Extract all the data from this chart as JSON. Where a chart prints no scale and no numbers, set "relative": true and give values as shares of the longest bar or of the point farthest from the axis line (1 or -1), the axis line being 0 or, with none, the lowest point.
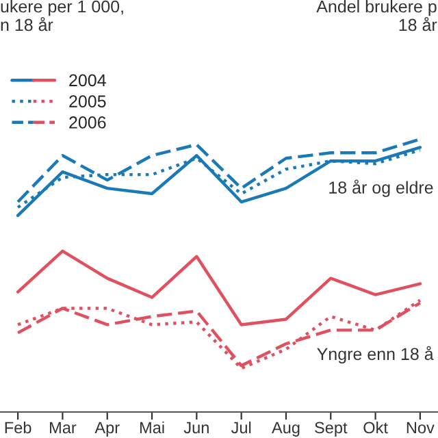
{
  "chart_data": {
    "type": "line",
    "relative": true,
    "title": "ukere per 1 000,\nn 18 år",
    "subtitle": "Andel brukere p\n18 år",
    "categories": [
      "Feb",
      "Mar",
      "Apr",
      "Mai",
      "Jun",
      "Jul",
      "Aug",
      "Sept",
      "Okt",
      "Nov"
    ],
    "series": [
      {
        "name": "2004",
        "color": "#1a7ab8",
        "line_style": "solid",
        "values": [
          0.72,
          0.88,
          0.82,
          0.8,
          0.94,
          0.77,
          0.82,
          0.92,
          0.92,
          0.97
        ]
      },
      {
        "name": "2005",
        "color": "#1a7ab8",
        "line_style": "dotted",
        "values": [
          0.75,
          0.86,
          0.87,
          0.87,
          0.93,
          0.8,
          0.89,
          0.92,
          0.91,
          0.96
        ]
      },
      {
        "name": "2006",
        "color": "#1a7ab8",
        "line_style": "dashed",
        "values": [
          0.77,
          0.94,
          0.85,
          0.94,
          0.98,
          0.82,
          0.93,
          0.95,
          0.95,
          1.0
        ]
      },
      {
        "color": "#e0505f",
        "line_style": "solid",
        "values": [
          0.44,
          0.59,
          0.49,
          0.42,
          0.57,
          0.32,
          0.34,
          0.49,
          0.43,
          0.47
        ]
      },
      {
        "color": "#e0505f",
        "line_style": "dotted",
        "values": [
          0.32,
          0.38,
          0.38,
          0.32,
          0.33,
          0.16,
          0.23,
          0.35,
          0.3,
          0.41
        ]
      },
      {
        "color": "#e0505f",
        "line_style": "dashed",
        "values": [
          0.29,
          0.38,
          0.32,
          0.35,
          0.37,
          0.17,
          0.25,
          0.3,
          0.3,
          0.4
        ]
      }
    ],
    "annotations": [
      "18 år og eldre",
      "Yngre enn 18 å"
    ],
    "legend": "top left",
    "grid": false,
    "marker": "none"
  }
}
